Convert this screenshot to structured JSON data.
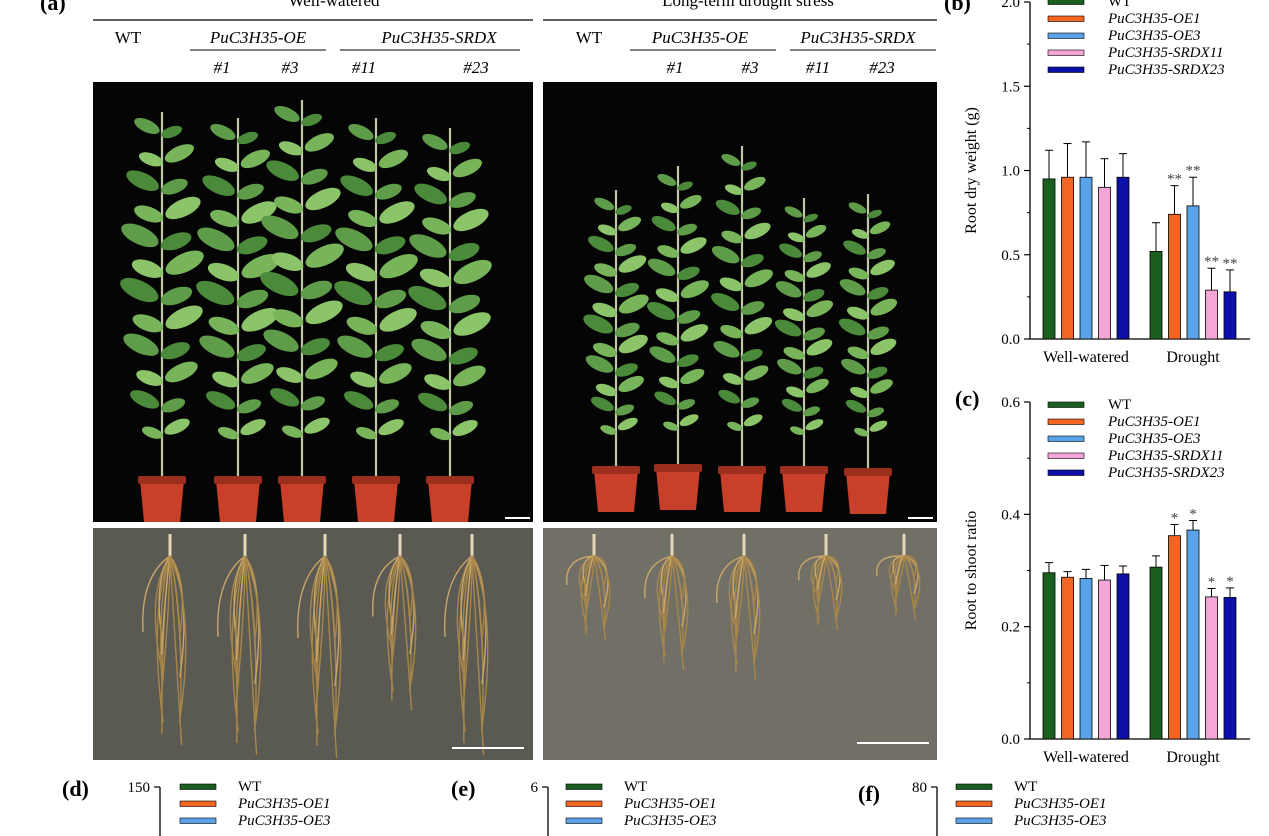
{
  "panels": {
    "a": {
      "label": "(a)",
      "left_title": "Well-watered",
      "right_title": "Long-term drought stress",
      "wt": "WT",
      "oe": "PuC3H35-OE",
      "srdx": "PuC3H35-SRDX",
      "lines": [
        "#1",
        "#3",
        "#11",
        "#23"
      ]
    },
    "b": {
      "label": "(b)"
    },
    "c": {
      "label": "(c)"
    },
    "d": {
      "label": "(d)",
      "ytop": "150",
      "legend": [
        "WT",
        "PuC3H35-OE1",
        "PuC3H35-OE3"
      ]
    },
    "e": {
      "label": "(e)",
      "ytop": "6",
      "legend": [
        "WT",
        "PuC3H35-OE1",
        "PuC3H35-OE3"
      ]
    },
    "f": {
      "label": "(f)",
      "ytop": "80",
      "legend": [
        "WT",
        "PuC3H35-OE1",
        "PuC3H35-OE3"
      ]
    }
  },
  "colors": {
    "WT": "#1a5e20",
    "OE1": "#f26522",
    "OE3": "#5aa3e8",
    "SRDX11": "#f4a6d7",
    "SRDX23": "#0d10a8",
    "photo_bg": "#050505",
    "root_bg": "#5b5a52",
    "pot": "#c8402a"
  },
  "chart_data": [
    {
      "panel": "b",
      "type": "bar",
      "categories": [
        "Well-watered",
        "Drought"
      ],
      "series": [
        {
          "name": "WT",
          "values": [
            0.95,
            0.52
          ],
          "errors": [
            0.17,
            0.17
          ]
        },
        {
          "name": "PuC3H35-OE1",
          "values": [
            0.96,
            0.74
          ],
          "errors": [
            0.2,
            0.17
          ]
        },
        {
          "name": "PuC3H35-OE3",
          "values": [
            0.96,
            0.79
          ],
          "errors": [
            0.21,
            0.17
          ]
        },
        {
          "name": "PuC3H35-SRDX11",
          "values": [
            0.9,
            0.29
          ],
          "errors": [
            0.17,
            0.13
          ]
        },
        {
          "name": "PuC3H35-SRDX23",
          "values": [
            0.96,
            0.28
          ],
          "errors": [
            0.14,
            0.13
          ]
        }
      ],
      "annotations": [
        {
          "category": "Drought",
          "series": "PuC3H35-OE1",
          "text": "**"
        },
        {
          "category": "Drought",
          "series": "PuC3H35-OE3",
          "text": "**"
        },
        {
          "category": "Drought",
          "series": "PuC3H35-SRDX11",
          "text": "**"
        },
        {
          "category": "Drought",
          "series": "PuC3H35-SRDX23",
          "text": "**"
        }
      ],
      "ylabel": "Root dry weight (g)",
      "ylim": [
        0,
        2.0
      ],
      "yticks": [
        "0.0",
        "0.5",
        "1.0",
        "1.5",
        "2.0"
      ],
      "legend_position": "top-right",
      "grid": false
    },
    {
      "panel": "c",
      "type": "bar",
      "categories": [
        "Well-watered",
        "Drought"
      ],
      "series": [
        {
          "name": "WT",
          "values": [
            0.296,
            0.306
          ],
          "errors": [
            0.018,
            0.02
          ]
        },
        {
          "name": "PuC3H35-OE1",
          "values": [
            0.288,
            0.362
          ],
          "errors": [
            0.01,
            0.02
          ]
        },
        {
          "name": "PuC3H35-OE3",
          "values": [
            0.286,
            0.372
          ],
          "errors": [
            0.016,
            0.017
          ]
        },
        {
          "name": "PuC3H35-SRDX11",
          "values": [
            0.283,
            0.253
          ],
          "errors": [
            0.026,
            0.015
          ]
        },
        {
          "name": "PuC3H35-SRDX23",
          "values": [
            0.294,
            0.252
          ],
          "errors": [
            0.014,
            0.017
          ]
        }
      ],
      "annotations": [
        {
          "category": "Drought",
          "series": "PuC3H35-OE1",
          "text": "*"
        },
        {
          "category": "Drought",
          "series": "PuC3H35-OE3",
          "text": "*"
        },
        {
          "category": "Drought",
          "series": "PuC3H35-SRDX11",
          "text": "*"
        },
        {
          "category": "Drought",
          "series": "PuC3H35-SRDX23",
          "text": "*"
        }
      ],
      "ylabel": "Root to shoot ratio",
      "ylim": [
        0,
        0.6
      ],
      "yticks": [
        "0.0",
        "0.2",
        "0.4",
        "0.6"
      ],
      "legend_position": "top",
      "grid": false
    }
  ]
}
